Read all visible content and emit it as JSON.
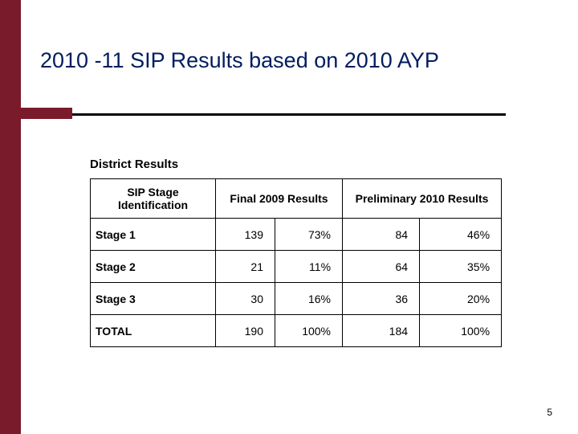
{
  "accent_color": "#7a1b2b",
  "title_color": "#001d60",
  "background_color": "#ffffff",
  "title": "2010 -11 SIP Results based on 2010 AYP",
  "subtitle": "District Results",
  "page_number": "5",
  "table": {
    "headers": {
      "col1": "SIP Stage Identification",
      "col2": "Final 2009 Results",
      "col3": "Preliminary 2010 Results"
    },
    "rows": [
      {
        "label": "Stage 1",
        "final_n": "139",
        "final_pct": "73%",
        "prelim_n": "84",
        "prelim_pct": "46%"
      },
      {
        "label": "Stage 2",
        "final_n": "21",
        "final_pct": "11%",
        "prelim_n": "64",
        "prelim_pct": "35%"
      },
      {
        "label": "Stage 3",
        "final_n": "30",
        "final_pct": "16%",
        "prelim_n": "36",
        "prelim_pct": "20%"
      },
      {
        "label": "TOTAL",
        "final_n": "190",
        "final_pct": "100%",
        "prelim_n": "184",
        "prelim_pct": "100%"
      }
    ]
  }
}
